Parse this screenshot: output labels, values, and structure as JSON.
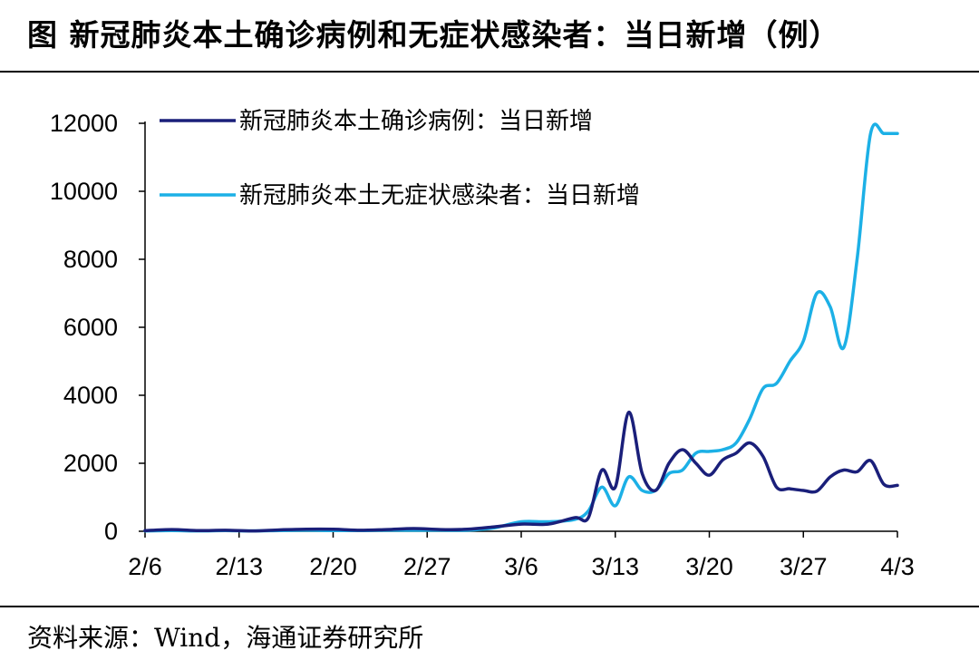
{
  "header": {
    "title": "图 新冠肺炎本土确诊病例和无症状感染者：当日新增（例）"
  },
  "footer": {
    "source": "资料来源：Wind，海通证券研究所"
  },
  "chart_data": {
    "type": "line",
    "x_tick_labels": [
      "2/6",
      "2/13",
      "2/20",
      "2/27",
      "3/6",
      "3/13",
      "3/20",
      "3/27",
      "4/3"
    ],
    "y_ticks": [
      0,
      2000,
      4000,
      6000,
      8000,
      10000,
      12000
    ],
    "ylim": [
      0,
      12000
    ],
    "x_domain": [
      "2022-02-06",
      "2022-04-03"
    ],
    "legend_position": "top-left",
    "grid": false,
    "series": [
      {
        "name": "新冠肺炎本土确诊病例：当日新增",
        "color": "#1a1f7a",
        "x": [
          "2022-02-06",
          "2022-02-08",
          "2022-02-10",
          "2022-02-12",
          "2022-02-14",
          "2022-02-16",
          "2022-02-18",
          "2022-02-20",
          "2022-02-22",
          "2022-02-24",
          "2022-02-26",
          "2022-02-28",
          "2022-03-02",
          "2022-03-04",
          "2022-03-06",
          "2022-03-08",
          "2022-03-10",
          "2022-03-11",
          "2022-03-12",
          "2022-03-13",
          "2022-03-14",
          "2022-03-15",
          "2022-03-16",
          "2022-03-17",
          "2022-03-18",
          "2022-03-19",
          "2022-03-20",
          "2022-03-21",
          "2022-03-22",
          "2022-03-23",
          "2022-03-24",
          "2022-03-25",
          "2022-03-26",
          "2022-03-27",
          "2022-03-28",
          "2022-03-29",
          "2022-03-30",
          "2022-03-31",
          "2022-04-01",
          "2022-04-02",
          "2022-04-03"
        ],
        "y": [
          20,
          50,
          20,
          30,
          10,
          40,
          60,
          60,
          30,
          50,
          80,
          50,
          60,
          130,
          210,
          210,
          400,
          400,
          1800,
          1300,
          3500,
          1700,
          1200,
          2000,
          2400,
          2000,
          1650,
          2100,
          2300,
          2600,
          2200,
          1300,
          1250,
          1200,
          1180,
          1600,
          1800,
          1750,
          2080,
          1380,
          1350
        ]
      },
      {
        "name": "新冠肺炎本土无症状感染者：当日新增",
        "color": "#1cb0e6",
        "x": [
          "2022-02-06",
          "2022-02-08",
          "2022-02-10",
          "2022-02-12",
          "2022-02-14",
          "2022-02-16",
          "2022-02-18",
          "2022-02-20",
          "2022-02-22",
          "2022-02-24",
          "2022-02-26",
          "2022-02-28",
          "2022-03-02",
          "2022-03-04",
          "2022-03-06",
          "2022-03-08",
          "2022-03-10",
          "2022-03-11",
          "2022-03-12",
          "2022-03-13",
          "2022-03-14",
          "2022-03-15",
          "2022-03-16",
          "2022-03-17",
          "2022-03-18",
          "2022-03-19",
          "2022-03-20",
          "2022-03-21",
          "2022-03-22",
          "2022-03-23",
          "2022-03-24",
          "2022-03-25",
          "2022-03-26",
          "2022-03-27",
          "2022-03-28",
          "2022-03-29",
          "2022-03-30",
          "2022-03-31",
          "2022-04-01",
          "2022-04-02",
          "2022-04-03"
        ],
        "y": [
          10,
          20,
          10,
          20,
          10,
          20,
          30,
          20,
          20,
          30,
          30,
          30,
          30,
          100,
          280,
          280,
          350,
          600,
          1300,
          750,
          1600,
          1200,
          1200,
          1700,
          1800,
          2300,
          2350,
          2400,
          2600,
          3300,
          4200,
          4350,
          5000,
          5600,
          7000,
          6600,
          5400,
          8000,
          11700,
          11700,
          11700
        ]
      }
    ]
  }
}
